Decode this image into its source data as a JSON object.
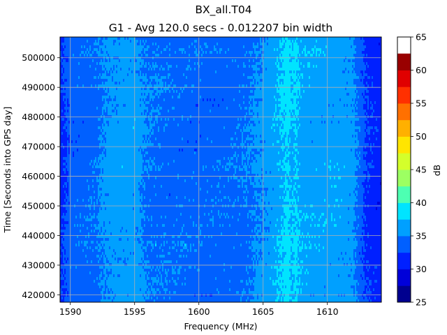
{
  "chart_data": {
    "type": "heatmap",
    "title": "BX_all.T04",
    "subtitle": "G1 - Avg 120.0 secs - 0.012207 bin width",
    "xlabel": "Frequency (MHz)",
    "ylabel": "Time [Seconds into GPS day]",
    "xlim": [
      1589.2,
      1614.2
    ],
    "ylim": [
      417500,
      507000
    ],
    "x_ticks": [
      1590,
      1595,
      1600,
      1605,
      1610
    ],
    "x_tick_labels": [
      "1590",
      "1595",
      "1600",
      "1605",
      "1610"
    ],
    "y_ticks": [
      420000,
      430000,
      440000,
      450000,
      460000,
      470000,
      480000,
      490000,
      500000
    ],
    "y_tick_labels": [
      "420000",
      "430000",
      "440000",
      "450000",
      "460000",
      "470000",
      "480000",
      "490000",
      "500000"
    ],
    "grid": true,
    "colorbar": {
      "label": "dB",
      "levels": [
        25,
        27.5,
        30,
        32.5,
        35,
        37.5,
        40,
        42.5,
        45,
        47.5,
        50,
        52.5,
        55,
        57.5,
        60,
        62.5,
        65
      ],
      "tick_values": [
        25,
        30,
        35,
        40,
        45,
        50,
        55,
        60,
        65
      ],
      "tick_labels": [
        "25",
        "30",
        "35",
        "40",
        "45",
        "50",
        "55",
        "60",
        "65"
      ],
      "colors": [
        "#00008f",
        "#0000d9",
        "#0020ff",
        "#0060ff",
        "#00a0ff",
        "#00e4ff",
        "#4dffb2",
        "#9dff62",
        "#d4ff2b",
        "#ffe500",
        "#ffb000",
        "#ff7000",
        "#ff3000",
        "#e00000",
        "#990000"
      ]
    },
    "frequency_profile_db": {
      "frequencies_mhz": [
        1589.2,
        1590.0,
        1592.0,
        1592.5,
        1593.0,
        1594.0,
        1595.0,
        1595.5,
        1596.0,
        1598.0,
        1600.0,
        1602.0,
        1603.0,
        1604.0,
        1604.5,
        1605.0,
        1605.5,
        1606.0,
        1606.5,
        1606.9,
        1607.2,
        1607.6,
        1608.0,
        1610.0,
        1611.0,
        1612.0,
        1612.5,
        1613.0,
        1614.2
      ],
      "values_db": [
        31.5,
        33.6,
        34.3,
        35.2,
        35.8,
        36.0,
        36.2,
        35.5,
        34.6,
        34.0,
        33.9,
        34.0,
        34.2,
        34.6,
        35.4,
        35.6,
        36.0,
        36.8,
        37.5,
        38.4,
        37.2,
        37.8,
        36.5,
        36.4,
        36.3,
        35.8,
        34.0,
        32.2,
        31.0
      ]
    }
  }
}
